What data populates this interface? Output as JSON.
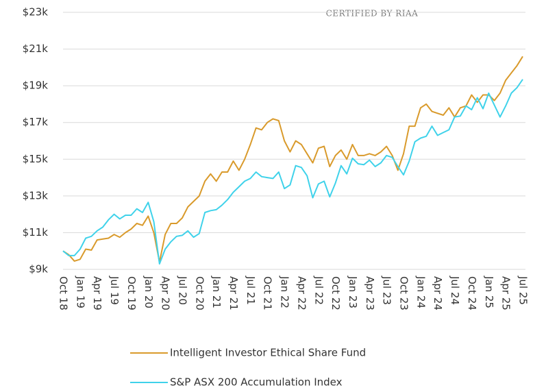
{
  "chart_data": {
    "type": "line",
    "annotation": "CERTIFIED BY RIAA",
    "categories": [
      "Oct 18",
      null,
      null,
      "Jan 19",
      null,
      null,
      "Apr 19",
      null,
      null,
      "Jul 19",
      null,
      null,
      "Oct 19",
      null,
      null,
      "Jan 20",
      null,
      null,
      "Apr 20",
      null,
      null,
      "Jul 20",
      null,
      null,
      "Oct 20",
      null,
      null,
      "Jan 21",
      null,
      null,
      "Apr 21",
      null,
      null,
      "Jul 21",
      null,
      null,
      "Oct 21",
      null,
      null,
      "Jan 22",
      null,
      null,
      "Apr 22",
      null,
      null,
      "Jul 22",
      null,
      null,
      "Oct 22",
      null,
      null,
      "Jan 23",
      null,
      null,
      "Apr 23",
      null,
      null,
      "Jul 23",
      null,
      null,
      "Oct 23",
      null,
      null,
      "Jan 24",
      null,
      null,
      "Apr 24",
      null,
      null,
      "Jul 24",
      null,
      null,
      "Oct 24",
      null,
      null,
      "Jan 25",
      null,
      null,
      "Apr 25",
      null,
      null,
      "Jul 25"
    ],
    "series": [
      {
        "name": "Intelligent Investor Ethical Share Fund",
        "color": "#d99a2b",
        "values": [
          10000,
          9800,
          9450,
          9550,
          10100,
          10050,
          10600,
          10650,
          10700,
          10900,
          10750,
          11000,
          11200,
          11500,
          11400,
          11900,
          11000,
          9400,
          10900,
          11500,
          11500,
          11800,
          12400,
          12700,
          13000,
          13800,
          14200,
          13800,
          14300,
          14300,
          14900,
          14400,
          15000,
          15800,
          16700,
          16600,
          17000,
          17200,
          17100,
          16000,
          15400,
          16000,
          15800,
          15300,
          14800,
          15600,
          15700,
          14600,
          15200,
          15500,
          15000,
          15800,
          15200,
          15200,
          15300,
          15200,
          15400,
          15700,
          15200,
          14400,
          15300,
          16800,
          16800,
          17800,
          18000,
          17600,
          17500,
          17400,
          17800,
          17300,
          17800,
          17900,
          18500,
          18100,
          18500,
          18500,
          18200,
          18600,
          19300,
          19700,
          20100,
          20600
        ]
      },
      {
        "name": "S&P ASX 200 Accumulation Index",
        "color": "#3fd2ea",
        "values": [
          10000,
          9750,
          9750,
          10100,
          10700,
          10800,
          11100,
          11300,
          11700,
          12000,
          11750,
          11950,
          11950,
          12300,
          12100,
          12650,
          11600,
          9300,
          10100,
          10500,
          10800,
          10850,
          11100,
          10750,
          10950,
          12100,
          12200,
          12250,
          12500,
          12800,
          13200,
          13500,
          13800,
          13950,
          14300,
          14050,
          14000,
          13950,
          14300,
          13400,
          13600,
          14650,
          14550,
          14100,
          12900,
          13650,
          13800,
          12950,
          13700,
          14650,
          14200,
          15050,
          14750,
          14700,
          14950,
          14600,
          14800,
          15200,
          15100,
          14600,
          14150,
          14900,
          15950,
          16150,
          16250,
          16800,
          16300,
          16450,
          16600,
          17300,
          17350,
          17900,
          17700,
          18350,
          17750,
          18600,
          17950,
          17300,
          17900,
          18600,
          18900,
          19350
        ]
      }
    ],
    "ylim": [
      9000,
      23000
    ],
    "yticks": [
      {
        "value": 9000,
        "label": "$9k"
      },
      {
        "value": 11000,
        "label": "$11k"
      },
      {
        "value": 13000,
        "label": "$13k"
      },
      {
        "value": 15000,
        "label": "$15k"
      },
      {
        "value": 17000,
        "label": "$17k"
      },
      {
        "value": 19000,
        "label": "$19k"
      },
      {
        "value": 21000,
        "label": "$21k"
      },
      {
        "value": 23000,
        "label": "$23k"
      }
    ],
    "grid": true,
    "legend": "bottom"
  }
}
